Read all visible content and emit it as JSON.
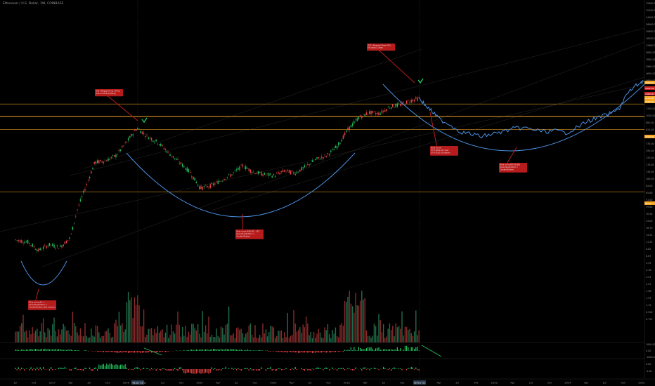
{
  "header": {
    "title": "Ethereum / U.S. Dollar, 1W, COINBASE"
  },
  "chart_data": {
    "type": "line",
    "scale": "log",
    "price_axis_labels": [
      "52800.00",
      "42200.00",
      "34400.00",
      "26800.00",
      "20800.00",
      "16200.00",
      "12600.00",
      "9800.00",
      "7600.00",
      "5960.00",
      "4640.00",
      "3600.00",
      "2800.00",
      "2180.00",
      "1700.00",
      "1320.00",
      "1028.00",
      "800.00",
      "624.00",
      "486.00",
      "378.00",
      "294.00",
      "229.00",
      "178.00",
      "138.00",
      "108.00",
      "84.00",
      "65.60",
      "51.00",
      "39.60",
      "30.90",
      "24.00",
      "18.70",
      "14.55",
      "11.35",
      "8.82",
      "6.87",
      "5.35",
      "4.16",
      "3.24",
      "2.52",
      "1.96",
      "1.53",
      "1.19",
      "0.928",
      "0.722"
    ],
    "price_badges": [
      {
        "text": "3600.00",
        "color": "#f5a623"
      },
      {
        "text": "2852.56",
        "color": "#cc2222"
      },
      {
        "text": "2460.00",
        "color": "#cc2222"
      },
      {
        "text": "2140.00",
        "color": "#f5a623"
      },
      {
        "text": "2080.00",
        "color": "#f5a623"
      },
      {
        "text": "1220.00",
        "color": "#f5a623"
      },
      {
        "text": "85.00",
        "color": "#f5a623"
      }
    ],
    "time_axis_labels": [
      "Jul",
      "Oct",
      "2017",
      "Apr",
      "Jul",
      "Oct",
      "2018",
      "Apr",
      "Jul",
      "Oct",
      "2019",
      "Apr",
      "Jul",
      "Oct",
      "2020",
      "Apr",
      "Jul",
      "Oct",
      "2021",
      "Apr",
      "Jul",
      "Oct",
      "2022",
      "Apr",
      "Jul",
      "Oct",
      "2023",
      "Apr",
      "Jul",
      "Oct",
      "2024",
      "Apr",
      "Jul",
      "Oct",
      "2025"
    ],
    "time_badges": [
      "08 Jan '18",
      "08 Nov '21"
    ],
    "osc1_axis_labels": [
      "1000.00",
      "0.00",
      "-1000.00"
    ],
    "osc2_axis_labels": [
      "0.00",
      "-5.00"
    ],
    "horizontal_levels": [
      3600,
      2140,
      2080,
      1220,
      85
    ],
    "levels_color": "#f5a623",
    "actual_color": "#22c55e",
    "down_color": "#ef4444",
    "projection_color": "#4a90e2",
    "arc_color": "#4a90e2",
    "checkmark_color": "#22c55e",
    "annotation_color": "#b71c1c",
    "annotations": [
      {
        "id": "a1",
        "lines": [
          "Blue curve #1 =",
          "Rounding Bottom =",
          "Double Bottom (but inverse)"
        ]
      },
      {
        "id": "a2",
        "lines": [
          "2017 Megabull hits off Top",
          "due to 2018 anything"
        ]
      },
      {
        "id": "a3",
        "lines": [
          "Blue curve WHY B1 - 1ST",
          "Rounding Bottom =",
          "Double Bottom"
        ]
      },
      {
        "id": "a4",
        "lines": [
          "2021 Megabull Peak ATH",
          "Hit 4000 & 4800"
        ]
      },
      {
        "id": "a5",
        "lines": [
          "Blue curve",
          "ETH 2022-23 crash",
          "ETH 2022-23 bottom"
        ]
      },
      {
        "id": "a6",
        "lines": [
          "Blue curve BTH B2/B3",
          "Rounding Bottom =",
          "Double Bottom"
        ]
      }
    ]
  }
}
